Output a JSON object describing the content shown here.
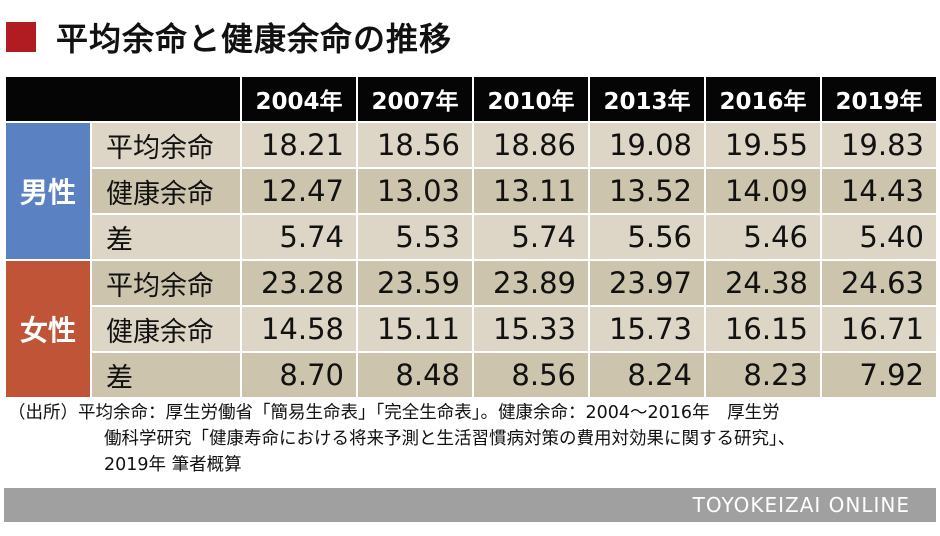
{
  "colors": {
    "title_marker": "#b01c22",
    "header_bg": "#050505",
    "male_group": "#5a82c2",
    "female_group": "#c05436",
    "footer_bg": "#a0a0a0"
  },
  "title": "平均余命と健康余命の推移",
  "table": {
    "years": [
      "2004年",
      "2007年",
      "2010年",
      "2013年",
      "2016年",
      "2019年"
    ],
    "groups": [
      {
        "label": "男性",
        "rows": [
          {
            "label": "平均余命",
            "values": [
              "18.21",
              "18.56",
              "18.86",
              "19.08",
              "19.55",
              "19.83"
            ]
          },
          {
            "label": "健康余命",
            "values": [
              "12.47",
              "13.03",
              "13.11",
              "13.52",
              "14.09",
              "14.43"
            ]
          },
          {
            "label": "差",
            "values": [
              "5.74",
              "5.53",
              "5.74",
              "5.56",
              "5.46",
              "5.40"
            ]
          }
        ]
      },
      {
        "label": "女性",
        "rows": [
          {
            "label": "平均余命",
            "values": [
              "23.28",
              "23.59",
              "23.89",
              "23.97",
              "24.38",
              "24.63"
            ]
          },
          {
            "label": "健康余命",
            "values": [
              "14.58",
              "15.11",
              "15.33",
              "15.73",
              "16.15",
              "16.71"
            ]
          },
          {
            "label": "差",
            "values": [
              "8.70",
              "8.48",
              "8.56",
              "8.24",
              "8.23",
              "7.92"
            ]
          }
        ]
      }
    ]
  },
  "source": {
    "line1": "（出所）平均余命：厚生労働省「簡易生命表」「完全生命表」。健康余命：2004〜2016年　厚生労",
    "line2": "働科学研究「健康寿命における将来予測と生活習慣病対策の費用対効果に関する研究」、",
    "line3": "2019年 筆者概算"
  },
  "footer": "TOYOKEIZAI  ONLINE"
}
